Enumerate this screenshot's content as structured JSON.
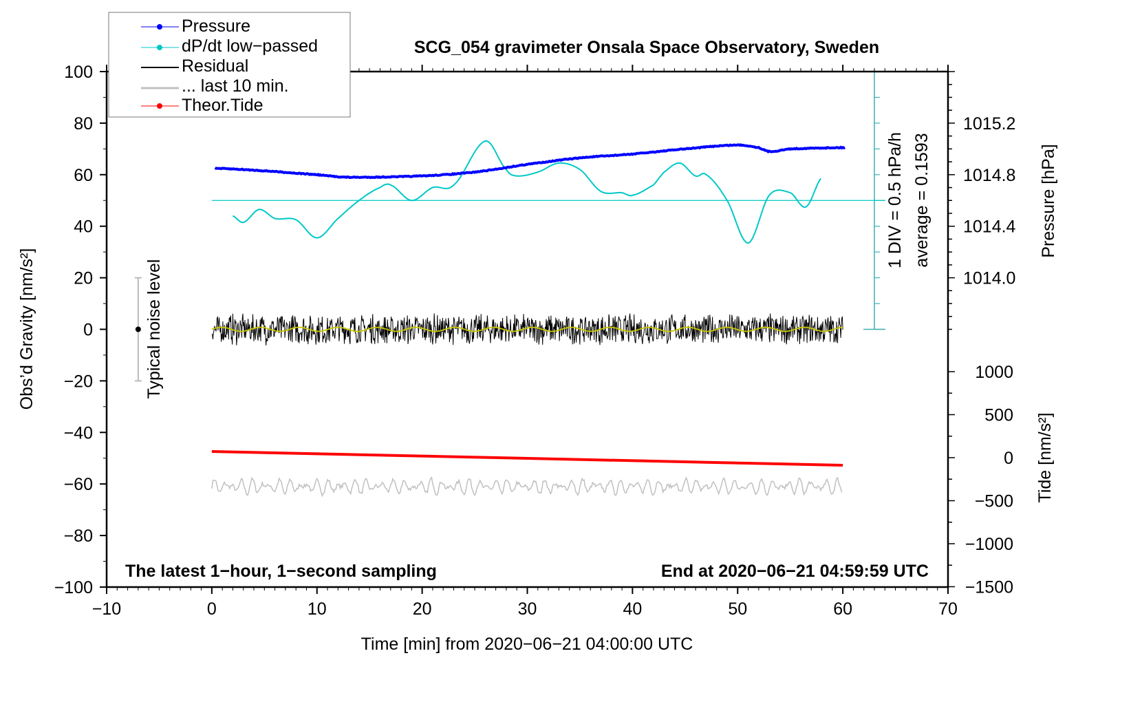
{
  "chart_data": {
    "type": "line",
    "title": "SCG_054 gravimeter Onsala Space Observatory, Sweden",
    "xlabel": "Time [min] from 2020−06−21 04:00:00 UTC",
    "ylabel_left": "Obs’d Gravity [nm/s²]",
    "ylabel_right_pressure": "Pressure [hPa]",
    "ylabel_right_tide": "Tide [nm/s²]",
    "xlim": [
      -10,
      70
    ],
    "ylim": [
      -100,
      100
    ],
    "xticks": [
      "−10",
      "0",
      "10",
      "20",
      "30",
      "40",
      "50",
      "60",
      "70"
    ],
    "yticks": [
      "100",
      "80",
      "60",
      "40",
      "20",
      "0",
      "−20",
      "−40",
      "−60",
      "−80",
      "−100"
    ],
    "pressure_ticks": [
      "1015.2",
      "1014.8",
      "1014.4",
      "1014.0"
    ],
    "tide_ticks": [
      "1000",
      "500",
      "0",
      "−500",
      "−1000",
      "−1500"
    ],
    "bottom_left_note": "The latest 1−hour, 1−second sampling",
    "bottom_right_note": "End at 2020−06−21 04:59:59 UTC",
    "noise_label": "Typical noise level",
    "noise_level": [
      -20,
      20
    ],
    "dpdt_scale_label": "1 DIV = 0.5 hPa/h",
    "dpdt_average_label": "average = 0.1593",
    "legend": [
      "Pressure",
      "dP/dt low−passed",
      "Residual",
      "... last 10 min.",
      "Theor.Tide"
    ],
    "colors": {
      "pressure": "#0000ff",
      "dpdt": "#00c8c8",
      "residual": "#000000",
      "last10": "#c0c0c0",
      "tide": "#ff0000",
      "residual_smooth": "#c8c800",
      "axis_dpdt": "#40b0b0"
    },
    "pressure": {
      "t": [
        0,
        5,
        10,
        13,
        20,
        25,
        30,
        35,
        40,
        45,
        50,
        52,
        53,
        55,
        60
      ],
      "hPa": [
        1014.85,
        1014.83,
        1014.8,
        1014.78,
        1014.79,
        1014.82,
        1014.88,
        1014.93,
        1014.96,
        1015.0,
        1015.03,
        1015.01,
        1014.98,
        1015.0,
        1015.01
      ]
    },
    "dpdt": {
      "t": [
        2,
        3,
        4.5,
        6,
        8,
        10,
        12,
        14,
        16,
        17,
        19,
        21,
        23,
        26,
        28,
        29,
        31,
        33,
        35,
        37,
        39,
        40,
        42,
        43,
        44.5,
        46,
        47,
        49,
        51,
        53,
        55,
        56.5,
        58
      ],
      "deviation_hPa_per_h": [
        -0.3,
        -0.425,
        -0.175,
        -0.35,
        -0.375,
        -0.725,
        -0.35,
        0,
        0.25,
        0.3,
        0,
        0.25,
        0.3,
        1.15,
        0.6,
        0.475,
        0.55,
        0.725,
        0.6,
        0.175,
        0.15,
        0.1,
        0.3,
        0.55,
        0.725,
        0.475,
        0.5,
        0,
        -0.825,
        0.1,
        0.15,
        -0.125,
        0.45
      ]
    },
    "residual": {
      "t_range": [
        0,
        60
      ],
      "mean": 0,
      "amplitude": 4
    },
    "last10": {
      "t_range": [
        0,
        60
      ],
      "offset": -61,
      "amplitude": 3
    },
    "tide": {
      "t": [
        0,
        60
      ],
      "nm_s2": [
        72,
        -88
      ]
    }
  }
}
